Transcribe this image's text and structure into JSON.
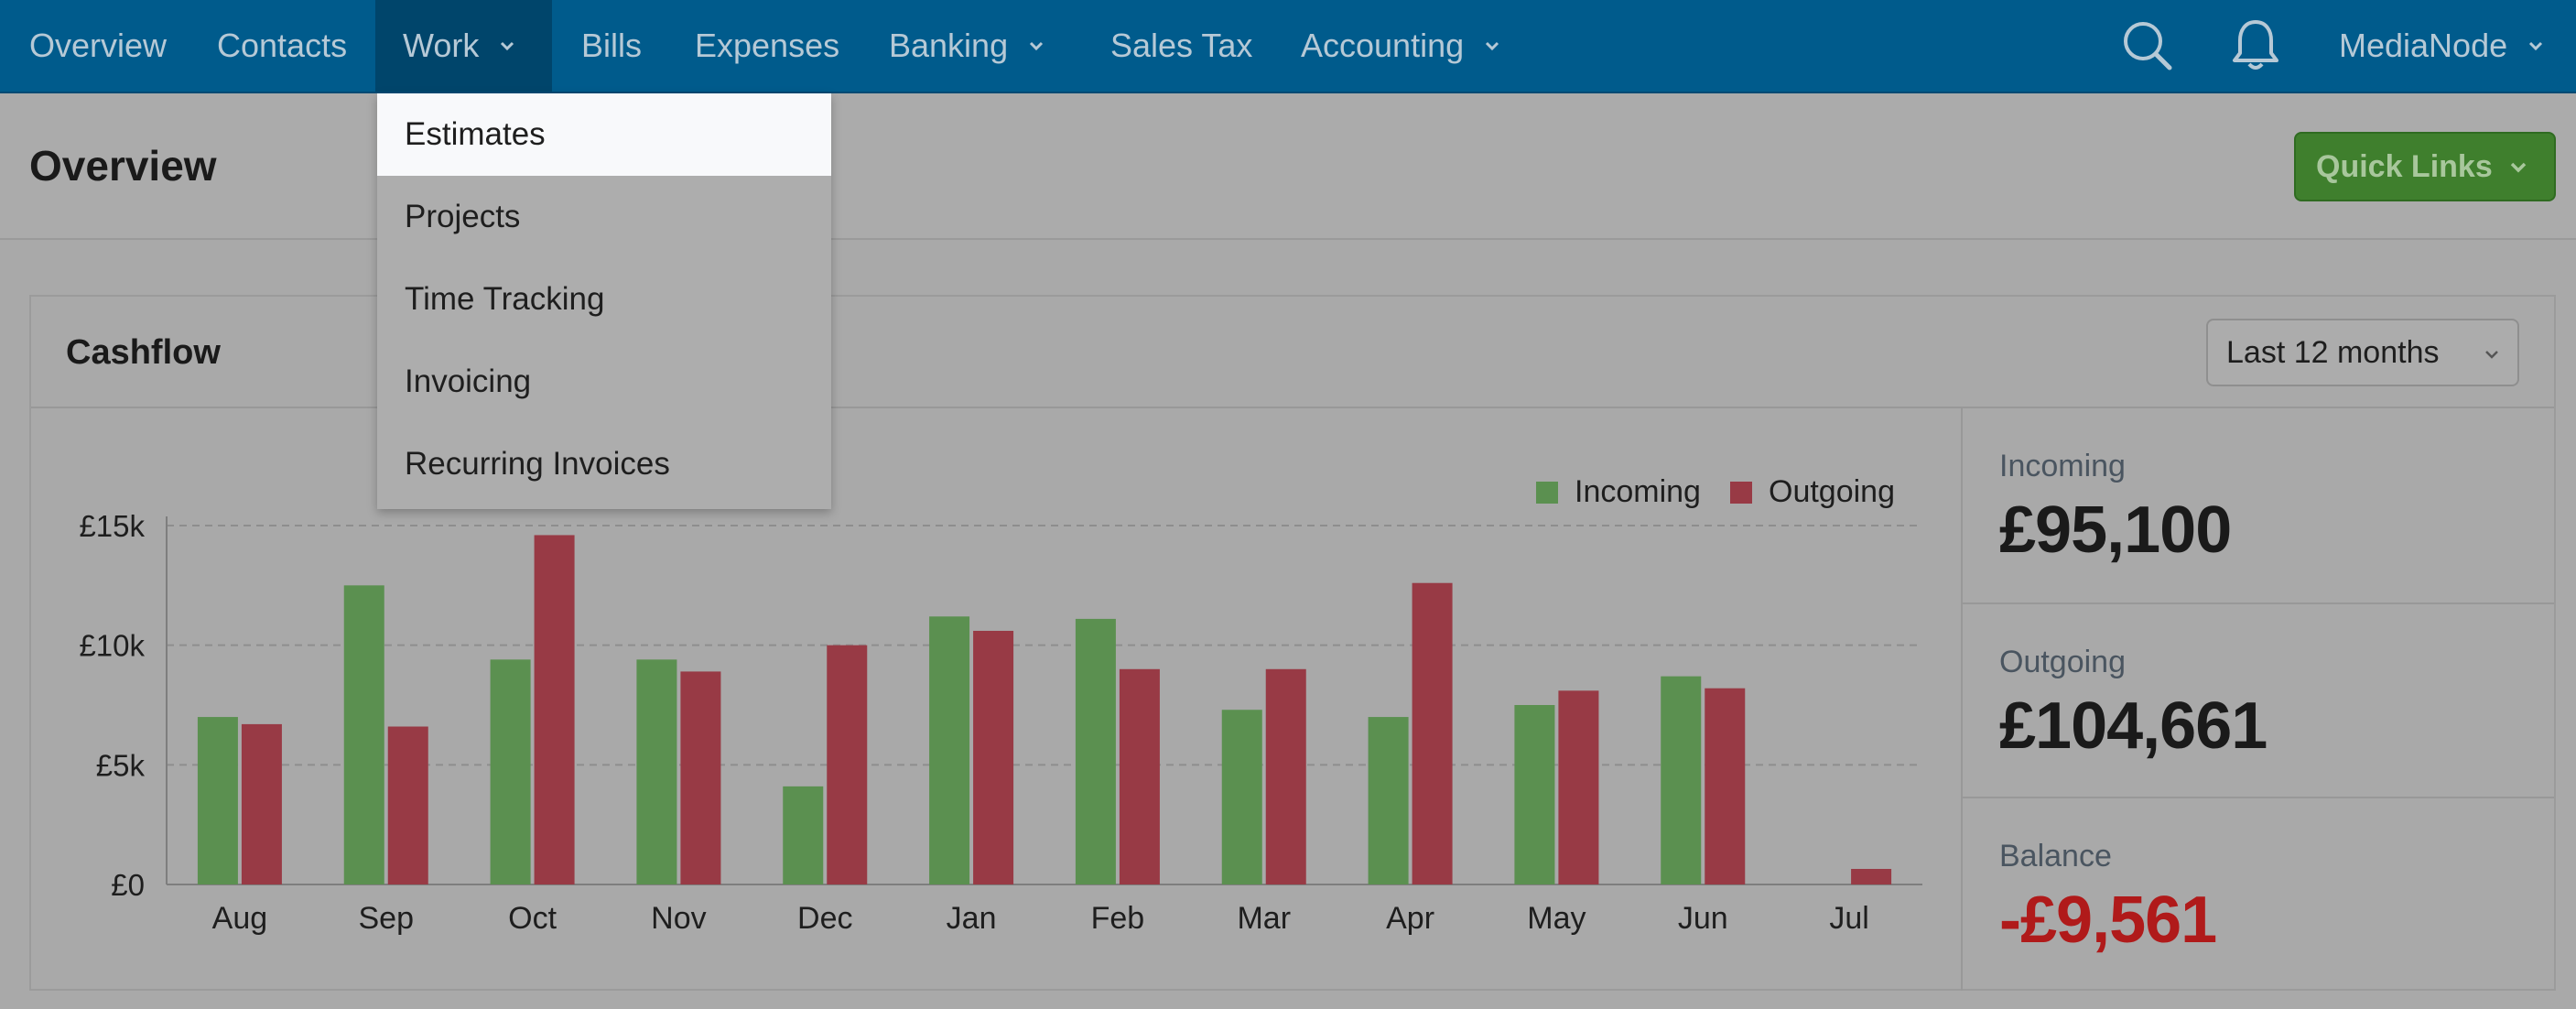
{
  "nav": {
    "items": [
      {
        "label": "Overview"
      },
      {
        "label": "Contacts"
      },
      {
        "label": "Work"
      },
      {
        "label": "Bills"
      },
      {
        "label": "Expenses"
      },
      {
        "label": "Banking"
      },
      {
        "label": "Sales Tax"
      },
      {
        "label": "Accounting"
      }
    ],
    "active": "Work",
    "account_label": "MediaNode",
    "icons": [
      "search-icon",
      "bell-icon",
      "chevron-down-icon"
    ]
  },
  "dropdown": {
    "items": [
      {
        "label": "Estimates"
      },
      {
        "label": "Projects"
      },
      {
        "label": "Time Tracking"
      },
      {
        "label": "Invoicing"
      },
      {
        "label": "Recurring Invoices"
      }
    ],
    "highlighted": "Estimates"
  },
  "header": {
    "title": "Overview",
    "quick_links_label": "Quick Links"
  },
  "cashflow": {
    "title": "Cashflow",
    "period_label": "Last 12 months",
    "stats": [
      {
        "label": "Incoming",
        "value": "£95,100"
      },
      {
        "label": "Outgoing",
        "value": "£104,661"
      },
      {
        "label": "Balance",
        "value": "-£9,561"
      }
    ]
  },
  "colors": {
    "nav_bg": "#005b8c",
    "incoming": "#5b9050",
    "outgoing": "#983a45",
    "quick_links": "#3f7f2d",
    "negative": "#b01a1a"
  },
  "chart_data": {
    "type": "bar",
    "categories": [
      "Aug",
      "Sep",
      "Oct",
      "Nov",
      "Dec",
      "Jan",
      "Feb",
      "Mar",
      "Apr",
      "May",
      "Jun",
      "Jul"
    ],
    "series": [
      {
        "name": "Incoming",
        "values": [
          7000,
          12500,
          9400,
          9400,
          4100,
          11200,
          11100,
          7300,
          7000,
          7500,
          8700,
          0
        ]
      },
      {
        "name": "Outgoing",
        "values": [
          6700,
          6600,
          14600,
          8900,
          10000,
          10600,
          9000,
          9000,
          12600,
          8100,
          8200,
          650
        ]
      }
    ],
    "yticks": [
      "£0",
      "£5k",
      "£10k",
      "£15k"
    ],
    "ylim": [
      0,
      15000
    ],
    "grid": true,
    "legend_position": "top-right"
  }
}
